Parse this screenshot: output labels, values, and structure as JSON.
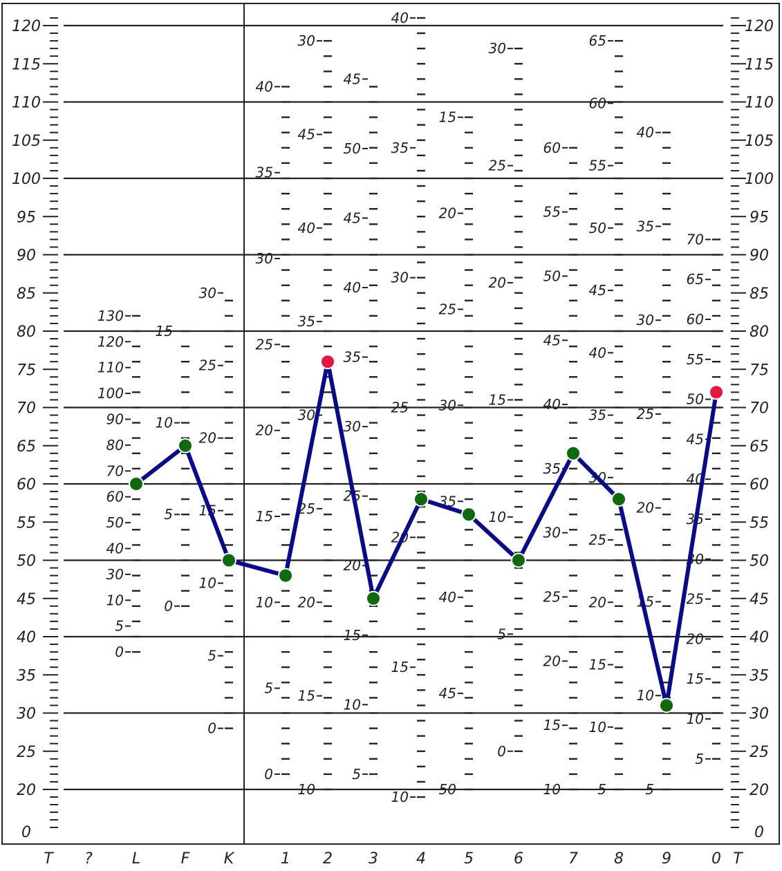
{
  "colors": {
    "line": "#0a0a8c",
    "normal_point": "#0d6b0d",
    "flagged_point": "#e8163c",
    "ink": "#222222",
    "background": "#ffffff"
  },
  "chart_data": {
    "type": "line",
    "title": "",
    "xlabel": "",
    "ylabel": "",
    "ylim": [
      18,
      122
    ],
    "y_scale_labels": [
      "120",
      "115",
      "110",
      "105",
      "100",
      "95",
      "90",
      "85",
      "80",
      "75",
      "70",
      "65",
      "60",
      "55",
      "50",
      "45",
      "40",
      "35",
      "30",
      "25",
      "20",
      "0"
    ],
    "grid_lines_y": [
      120,
      110,
      100,
      90,
      80,
      70,
      60,
      50,
      40,
      30,
      20
    ],
    "categories": [
      "T",
      "?",
      "L",
      "F",
      "K",
      "1",
      "2",
      "3",
      "4",
      "5",
      "6",
      "7",
      "8",
      "9",
      "0",
      "T"
    ],
    "series": [
      {
        "values": [
          {
            "x": "L",
            "y": 60
          },
          {
            "x": "F",
            "y": 65
          },
          {
            "x": "K",
            "y": 50
          },
          {
            "x": "1",
            "y": 48
          },
          {
            "x": "2",
            "y": 76
          },
          {
            "x": "3",
            "y": 45
          },
          {
            "x": "4",
            "y": 58
          },
          {
            "x": "5",
            "y": 56
          },
          {
            "x": "6",
            "y": 50
          },
          {
            "x": "7",
            "y": 64
          },
          {
            "x": "8",
            "y": 58
          },
          {
            "x": "9",
            "y": 31
          },
          {
            "x": "0",
            "y": 72
          }
        ],
        "flagged": [
          "2",
          "0"
        ]
      }
    ],
    "raw_scales": [
      {
        "col": "L",
        "labels": [
          "130",
          "120",
          "110",
          "100",
          "90",
          "80",
          "70",
          "60",
          "50",
          "40",
          "30",
          "10",
          "5",
          "0"
        ]
      },
      {
        "col": "F",
        "labels": [
          "15",
          "10",
          "5",
          "0"
        ]
      },
      {
        "col": "K",
        "labels": [
          "30",
          "25",
          "20",
          "15",
          "10",
          "5",
          "0"
        ]
      },
      {
        "col": "1",
        "labels": [
          "40",
          "35",
          "30",
          "25",
          "20",
          "15",
          "10",
          "5",
          "0"
        ]
      },
      {
        "col": "2",
        "labels": [
          "30",
          "45",
          "40",
          "35",
          "30",
          "25",
          "20",
          "15",
          "10"
        ]
      },
      {
        "col": "3",
        "labels": [
          "45",
          "50",
          "45",
          "40",
          "35",
          "30",
          "25",
          "20",
          "15",
          "10",
          "5"
        ]
      },
      {
        "col": "4",
        "labels": [
          "40",
          "35",
          "30",
          "25",
          "20",
          "15",
          "10"
        ]
      },
      {
        "col": "5",
        "labels": [
          "15",
          "20",
          "25",
          "30",
          "35",
          "40",
          "45",
          "50"
        ]
      },
      {
        "col": "6",
        "labels": [
          "30",
          "25",
          "20",
          "15",
          "10",
          "5",
          "0"
        ]
      },
      {
        "col": "7",
        "labels": [
          "60",
          "55",
          "50",
          "45",
          "40",
          "35",
          "30",
          "25",
          "20",
          "15",
          "10"
        ]
      },
      {
        "col": "8",
        "labels": [
          "65",
          "60",
          "55",
          "50",
          "45",
          "40",
          "35",
          "30",
          "25",
          "20",
          "15",
          "10",
          "5"
        ]
      },
      {
        "col": "9",
        "labels": [
          "40",
          "35",
          "30",
          "25",
          "20",
          "15",
          "10",
          "5"
        ]
      },
      {
        "col": "0",
        "labels": [
          "70",
          "65",
          "60",
          "55",
          "50",
          "45",
          "40",
          "35",
          "30",
          "25",
          "20",
          "15",
          "10",
          "5"
        ]
      }
    ]
  }
}
